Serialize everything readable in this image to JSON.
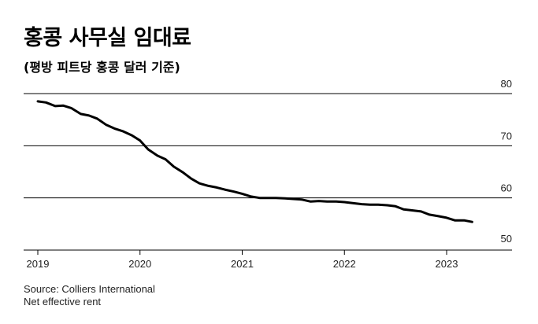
{
  "chart_data": {
    "type": "line",
    "title": "홍콩 사무실 임대료",
    "subtitle": "(평방 피트당 홍콩 달러 기준)",
    "xlabel": "",
    "ylabel": "",
    "ylim": [
      50,
      80
    ],
    "yticks": [
      50,
      60,
      70,
      80
    ],
    "y_axis_side": "right",
    "xlim": [
      2019,
      2023.5
    ],
    "xticks": [
      2019,
      2020,
      2021,
      2022,
      2023
    ],
    "grid": true,
    "series": [
      {
        "name": "Net effective rent",
        "color": "#000000",
        "x": [
          2019.0,
          2019.08,
          2019.17,
          2019.25,
          2019.33,
          2019.42,
          2019.5,
          2019.58,
          2019.67,
          2019.75,
          2019.83,
          2019.92,
          2020.0,
          2020.08,
          2020.17,
          2020.25,
          2020.33,
          2020.42,
          2020.5,
          2020.58,
          2020.67,
          2020.75,
          2020.83,
          2020.92,
          2021.0,
          2021.08,
          2021.17,
          2021.25,
          2021.33,
          2021.42,
          2021.5,
          2021.58,
          2021.67,
          2021.75,
          2021.83,
          2021.92,
          2022.0,
          2022.08,
          2022.17,
          2022.25,
          2022.33,
          2022.42,
          2022.5,
          2022.58,
          2022.67,
          2022.75,
          2022.83,
          2022.92,
          2023.0,
          2023.08,
          2023.17,
          2023.25
        ],
        "y": [
          78.5,
          78.3,
          77.6,
          77.7,
          77.2,
          76.1,
          75.8,
          75.2,
          74.0,
          73.3,
          72.8,
          72.0,
          71.0,
          69.3,
          68.1,
          67.4,
          66.0,
          64.9,
          63.7,
          62.8,
          62.3,
          62.0,
          61.6,
          61.2,
          60.8,
          60.3,
          60.0,
          60.0,
          60.0,
          59.9,
          59.8,
          59.7,
          59.3,
          59.4,
          59.3,
          59.3,
          59.2,
          59.0,
          58.8,
          58.7,
          58.7,
          58.6,
          58.4,
          57.8,
          57.6,
          57.4,
          56.8,
          56.5,
          56.2,
          55.7,
          55.7,
          55.4
        ]
      }
    ]
  },
  "footer": {
    "source": "Source: Colliers International",
    "note": "Net effective rent"
  }
}
